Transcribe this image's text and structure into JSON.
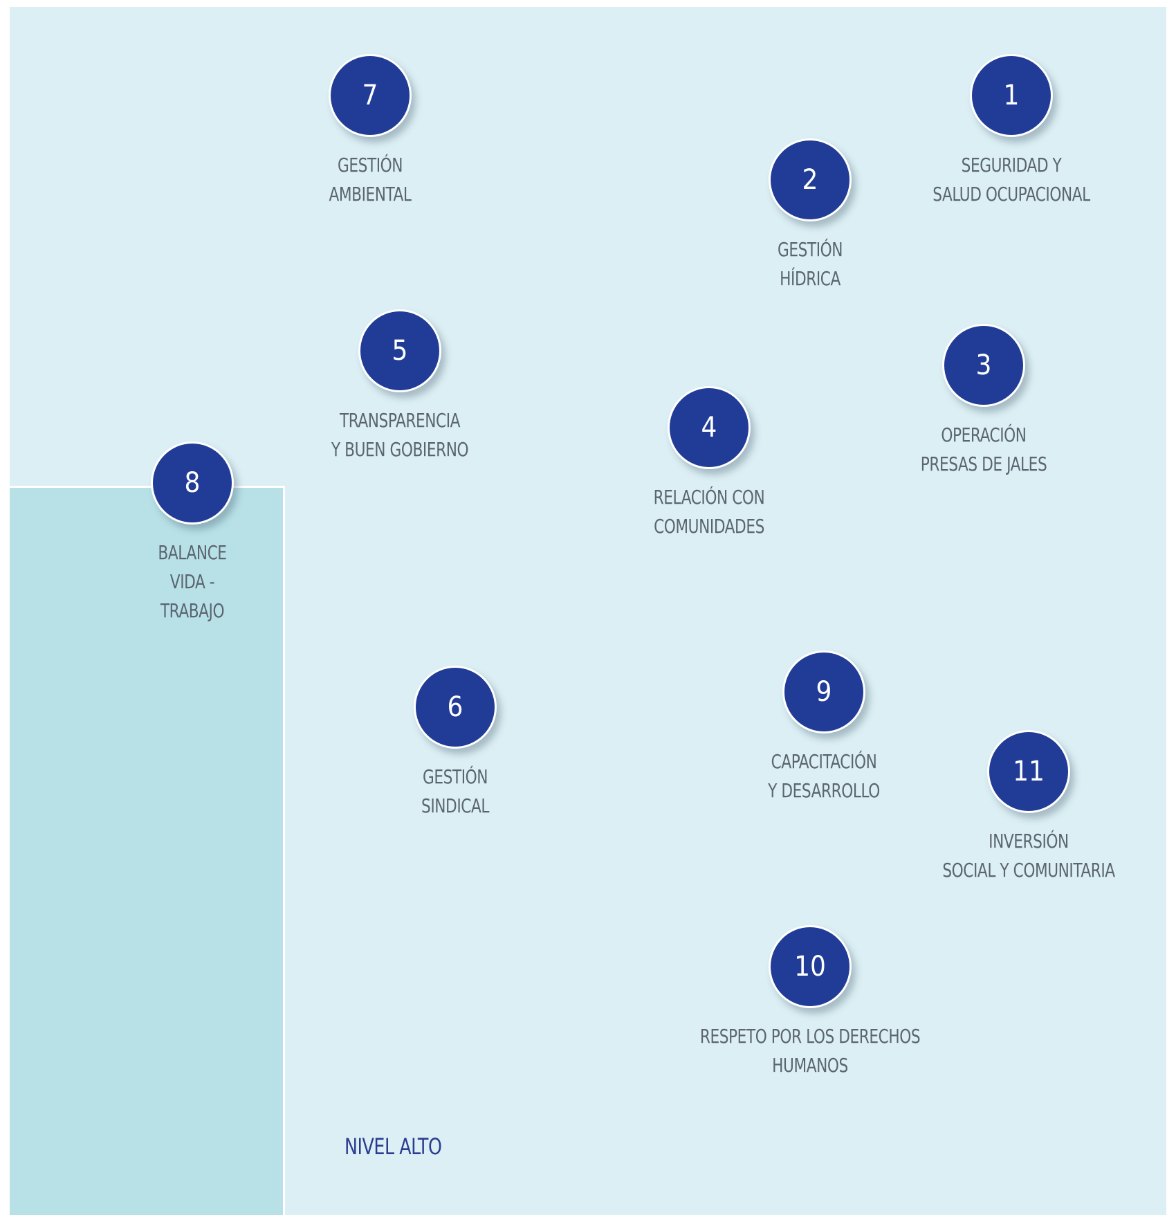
{
  "panel_label": "NIVEL ALTO",
  "colors": {
    "bubble": "#213c96",
    "label_text": "#5b6470",
    "panel_main": "#dbeff4",
    "panel_low": "#b7e1e7",
    "level_text": "#2b3c90"
  },
  "items": [
    {
      "number": "1",
      "lines": [
        "SEGURIDAD Y",
        "SALUD OCUPACIONAL"
      ]
    },
    {
      "number": "2",
      "lines": [
        "GESTIÓN",
        "HÍDRICA"
      ]
    },
    {
      "number": "3",
      "lines": [
        "OPERACIÓN",
        "PRESAS DE JALES"
      ]
    },
    {
      "number": "4",
      "lines": [
        "RELACIÓN CON",
        "COMUNIDADES"
      ]
    },
    {
      "number": "5",
      "lines": [
        "TRANSPARENCIA",
        "Y BUEN GOBIERNO"
      ]
    },
    {
      "number": "6",
      "lines": [
        "GESTIÓN",
        "SINDICAL"
      ]
    },
    {
      "number": "7",
      "lines": [
        "GESTIÓN",
        "AMBIENTAL"
      ]
    },
    {
      "number": "8",
      "lines": [
        "BALANCE",
        "VIDA -",
        "TRABAJO"
      ]
    },
    {
      "number": "9",
      "lines": [
        "CAPACITACIÓN",
        "Y DESARROLLO"
      ]
    },
    {
      "number": "10",
      "lines": [
        "RESPETO POR LOS DERECHOS",
        "HUMANOS"
      ]
    },
    {
      "number": "11",
      "lines": [
        "INVERSIÓN",
        "SOCIAL Y COMUNITARIA"
      ]
    }
  ]
}
